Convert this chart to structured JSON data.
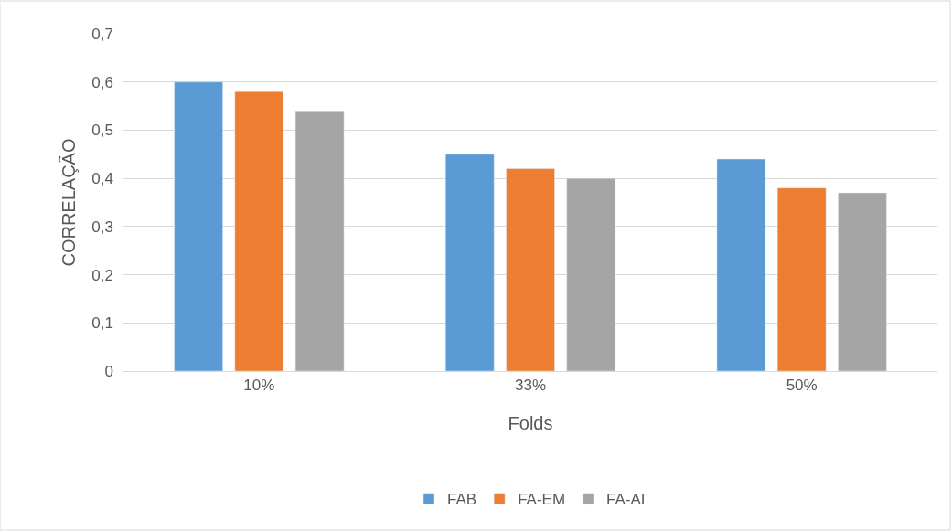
{
  "chart_data": {
    "type": "bar",
    "xlabel": "Folds",
    "ylabel": "CORRELAÇÃO",
    "categories": [
      "10%",
      "33%",
      "50%"
    ],
    "series": [
      {
        "name": "FAB",
        "color": "#5b9bd5",
        "values": [
          0.6,
          0.45,
          0.44
        ]
      },
      {
        "name": "FA-EM",
        "color": "#ed7d31",
        "values": [
          0.58,
          0.42,
          0.38
        ]
      },
      {
        "name": "FA-AI",
        "color": "#a5a5a5",
        "values": [
          0.54,
          0.4,
          0.37
        ]
      }
    ],
    "ylim": [
      0,
      0.7
    ],
    "yticks": [
      0,
      {
        "value": 0.1,
        "label": "0,1"
      },
      {
        "value": 0.2,
        "label": "0,2"
      },
      {
        "value": 0.3,
        "label": "0,3"
      },
      {
        "value": 0.4,
        "label": "0,4"
      },
      {
        "value": 0.5,
        "label": "0,5"
      },
      {
        "value": 0.6,
        "label": "0,6"
      },
      {
        "value": 0.7,
        "label": "0,7"
      }
    ],
    "grid": "y",
    "legend": "bottom"
  }
}
